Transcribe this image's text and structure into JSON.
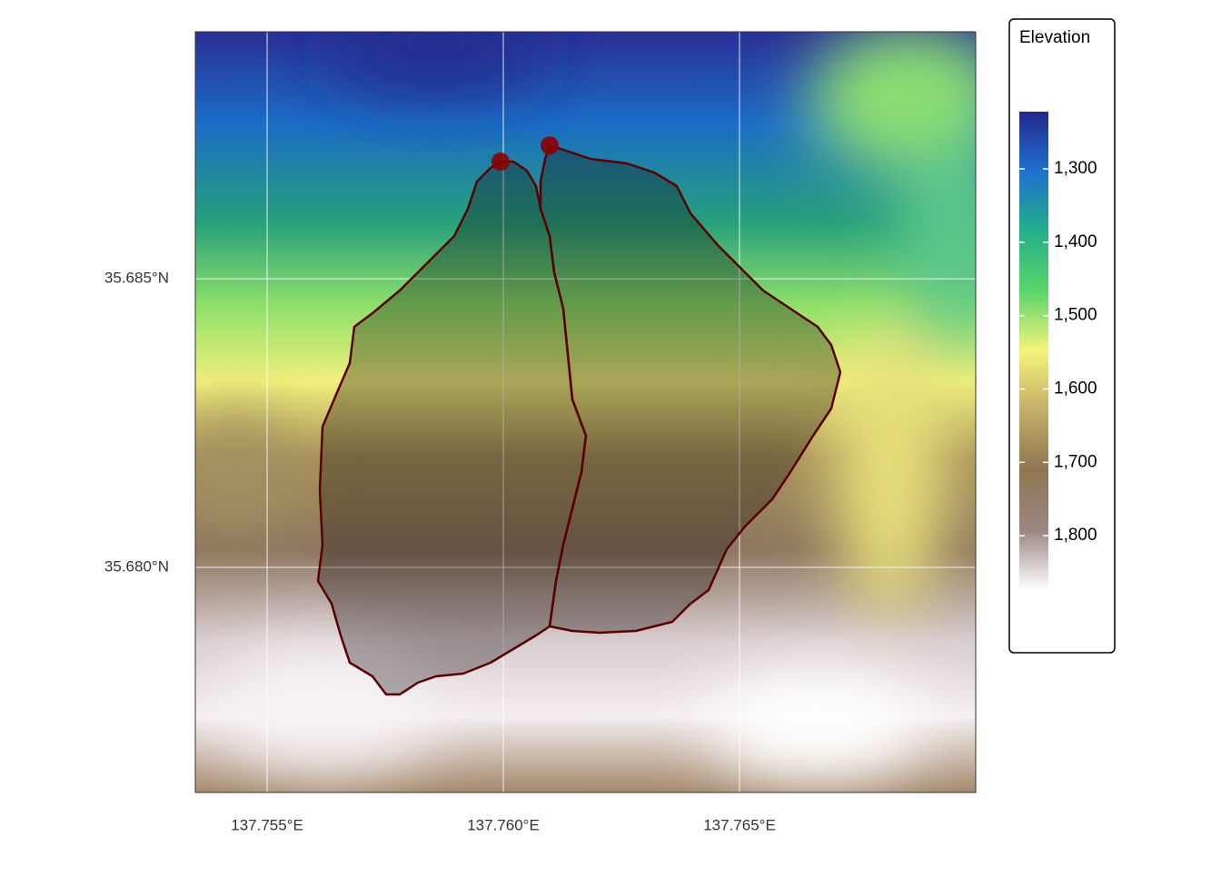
{
  "chart_data": {
    "type": "map",
    "xlim": [
      137.75348,
      137.77
    ],
    "ylim": [
      35.6761,
      35.68928
    ],
    "xticks": [
      {
        "value": 137.755,
        "label": "137.755°E"
      },
      {
        "value": 137.76,
        "label": "137.760°E"
      },
      {
        "value": 137.765,
        "label": "137.765°E"
      }
    ],
    "yticks": [
      {
        "value": 35.68,
        "label": "35.680°N"
      },
      {
        "value": 35.685,
        "label": "35.685°N"
      }
    ],
    "grid": true,
    "outlets": {
      "color": "#8b0000",
      "lon": [
        137.75994,
        137.76098
      ],
      "lat": [
        35.68703,
        35.68731
      ]
    },
    "legend": {
      "title": "Elevation",
      "lim": [
        1222,
        1874
      ],
      "colors": [
        "#232a8c",
        "#1e6fd0",
        "#24b08a",
        "#5ad56a",
        "#f4f47a",
        "#c2ad68",
        "#8e7650",
        "#9c8682",
        "#ffffff"
      ],
      "ticks": [
        {
          "value": 1300,
          "label": "1,300"
        },
        {
          "value": 1400,
          "label": "1,400"
        },
        {
          "value": 1500,
          "label": "1,500"
        },
        {
          "value": 1600,
          "label": "1,600"
        },
        {
          "value": 1700,
          "label": "1,700"
        },
        {
          "value": 1800,
          "label": "1,800"
        }
      ]
    }
  }
}
